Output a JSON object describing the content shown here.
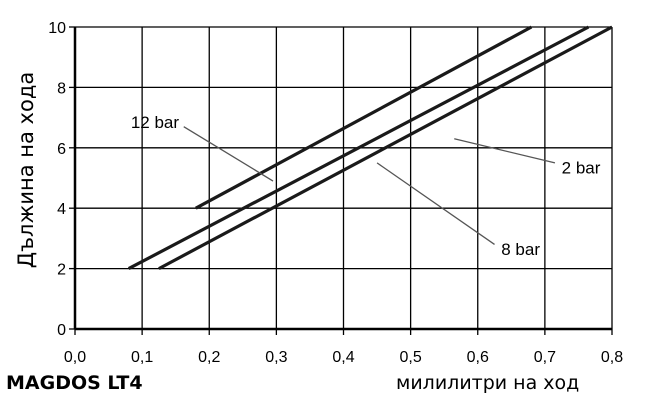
{
  "product_label": "MAGDOS LT4",
  "chart_data": {
    "type": "line",
    "xlabel": "милилитри на ход",
    "ylabel": "Дължина на хода",
    "xlim": [
      0,
      0.8
    ],
    "ylim": [
      0,
      10
    ],
    "x_ticks": [
      "0,0",
      "0,1",
      "0,2",
      "0,3",
      "0,4",
      "0,5",
      "0,6",
      "0,7",
      "0,8"
    ],
    "y_ticks": [
      "0",
      "2",
      "4",
      "6",
      "8",
      "10"
    ],
    "grid": true,
    "series": [
      {
        "name": "12 bar",
        "x": [
          0.18,
          0.68
        ],
        "y": [
          4,
          10
        ]
      },
      {
        "name": "8 bar",
        "x": [
          0.08,
          0.765
        ],
        "y": [
          2,
          10
        ]
      },
      {
        "name": "2 bar",
        "x": [
          0.125,
          0.8
        ],
        "y": [
          2,
          10
        ]
      }
    ]
  }
}
